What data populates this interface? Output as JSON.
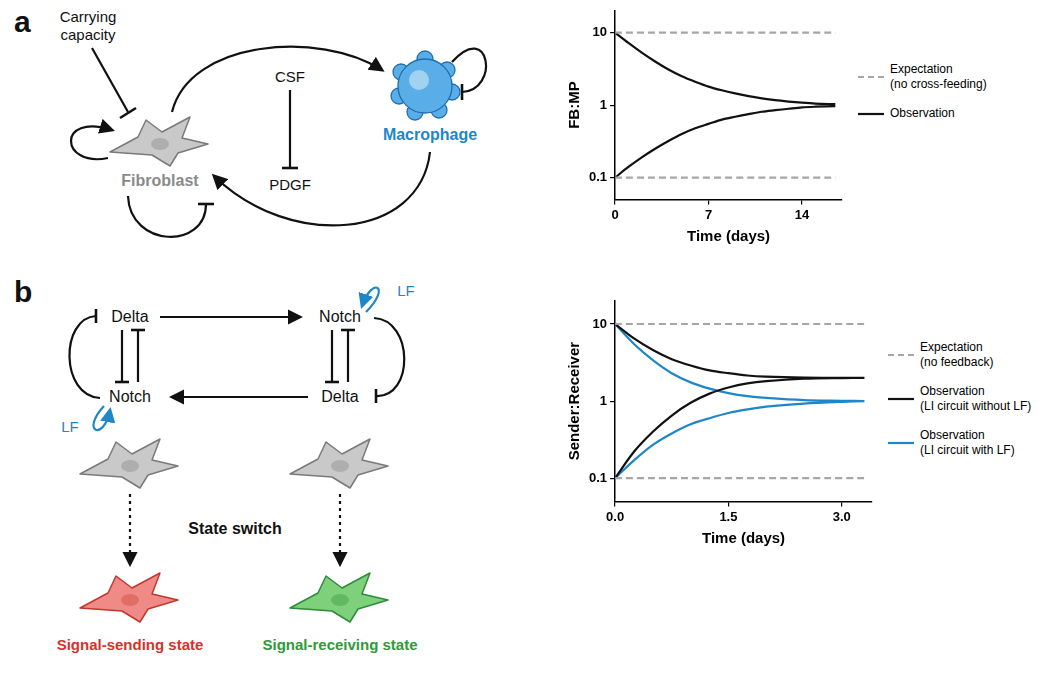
{
  "chart_data": [
    {
      "type": "line",
      "x_label": "Time (days)",
      "y_label": "FB:MP",
      "xlim": [
        0,
        17
      ],
      "xticks": [
        0,
        7,
        14
      ],
      "ylim": [
        0.05,
        20
      ],
      "yticks": [
        0.1,
        1,
        10
      ],
      "log": "y",
      "grid": false,
      "legend": "right",
      "series": [
        {
          "name": "Expectation (no cross-feeding)",
          "color": "#a6a6a6",
          "line_style": "dashed",
          "x": [
            0,
            16.5,
            null,
            0,
            16.5
          ],
          "values": [
            10,
            10,
            null,
            0.1,
            0.1
          ]
        },
        {
          "name": "Observation",
          "color": "#111111",
          "line_style": "solid",
          "x": [
            0,
            1,
            2,
            3,
            4,
            5,
            6,
            7,
            8,
            9,
            10,
            11,
            12,
            13,
            14,
            15,
            16.5,
            null,
            0,
            1,
            2,
            3,
            4,
            5,
            6,
            7,
            8,
            9,
            10,
            11,
            12,
            13,
            14,
            15,
            16.5
          ],
          "values": [
            10,
            7.2,
            5.3,
            4.0,
            3.1,
            2.5,
            2.1,
            1.8,
            1.6,
            1.45,
            1.33,
            1.24,
            1.17,
            1.12,
            1.08,
            1.05,
            1.03,
            null,
            0.1,
            0.14,
            0.19,
            0.25,
            0.32,
            0.4,
            0.48,
            0.55,
            0.63,
            0.69,
            0.75,
            0.81,
            0.85,
            0.89,
            0.93,
            0.95,
            0.97
          ]
        }
      ]
    },
    {
      "type": "line",
      "x_label": "Time (days)",
      "y_label": "Sender:Receiver",
      "xlim": [
        0,
        3.4
      ],
      "xticks": [
        {
          "value": 0,
          "label": "0.0"
        },
        1.5,
        {
          "value": 3,
          "label": "3.0"
        }
      ],
      "ylim": [
        0.05,
        20
      ],
      "yticks": [
        0.1,
        1,
        10
      ],
      "log": "y",
      "grid": false,
      "legend": "right",
      "series": [
        {
          "name": "Expectation (no feedback)",
          "color": "#a6a6a6",
          "line_style": "dashed",
          "x": [
            0,
            3.3,
            null,
            0,
            3.3
          ],
          "values": [
            10,
            10,
            null,
            0.1,
            0.1
          ]
        },
        {
          "name": "Observation (LI circuit without LF)",
          "color": "#111111",
          "line_style": "solid",
          "x": [
            0,
            0.25,
            0.5,
            0.75,
            1,
            1.25,
            1.5,
            1.75,
            2,
            2.5,
            3,
            3.3,
            null,
            0,
            0.25,
            0.5,
            0.75,
            1,
            1.25,
            1.5,
            1.75,
            2,
            2.5,
            3,
            3.3
          ],
          "values": [
            10,
            6.5,
            4.6,
            3.5,
            2.9,
            2.5,
            2.3,
            2.15,
            2.08,
            2.02,
            2.0,
            2.0,
            null,
            0.1,
            0.22,
            0.4,
            0.65,
            0.95,
            1.25,
            1.5,
            1.7,
            1.82,
            1.95,
            1.99,
            2.0
          ]
        },
        {
          "name": "Observation (LI circuit with LF)",
          "color": "#1f86c8",
          "line_style": "solid",
          "x": [
            0,
            0.25,
            0.5,
            0.75,
            1,
            1.25,
            1.5,
            1.75,
            2,
            2.5,
            3,
            3.3,
            null,
            0,
            0.25,
            0.5,
            0.75,
            1,
            1.25,
            1.5,
            1.75,
            2,
            2.5,
            3,
            3.3
          ],
          "values": [
            10,
            5.5,
            3.4,
            2.3,
            1.75,
            1.45,
            1.27,
            1.16,
            1.1,
            1.03,
            1.01,
            1.0,
            null,
            0.1,
            0.17,
            0.27,
            0.38,
            0.5,
            0.6,
            0.7,
            0.78,
            0.85,
            0.93,
            0.98,
            1.0
          ]
        }
      ]
    }
  ],
  "diagrams": [
    {
      "panel": "a",
      "carrying_capacity": "Carrying capacity",
      "signal_1": "CSF",
      "signal_2": "PDGF",
      "cell_1": "Fibroblast",
      "cell_2": "Macrophage"
    },
    {
      "panel": "b",
      "left_top": "Delta",
      "left_bottom": "Notch",
      "right_top": "Notch",
      "right_bottom": "Delta",
      "feedback_left": "LF",
      "feedback_right": "LF",
      "switch": "State switch",
      "state_1": "Signal-sending state",
      "state_2": "Signal-receiving state"
    }
  ]
}
